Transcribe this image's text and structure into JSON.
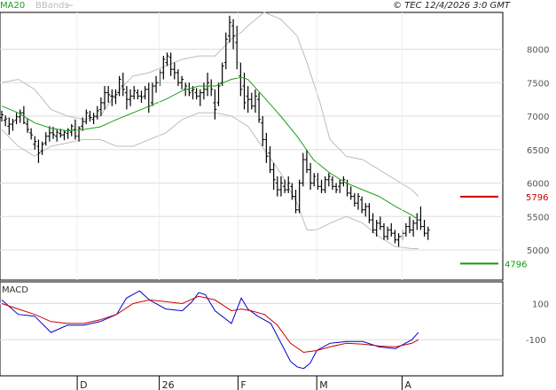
{
  "header": {
    "legend_ma": "MA20",
    "legend_bb": "BBands",
    "copyright": "© TEC 12/4/2026 3:0 GMT"
  },
  "colors": {
    "ma": "#1aa01a",
    "bbands": "#bdbdbd",
    "price": "#000000",
    "resistance": "#cc0000",
    "support": "#119911",
    "macd_line": "#0000cc",
    "signal_line": "#cc0000",
    "grid": "#dddddd"
  },
  "chart_data": [
    {
      "type": "line",
      "panel": "price",
      "ylim": [
        4550,
        8550
      ],
      "yticks": [
        5000,
        5500,
        6000,
        6500,
        7000,
        7500,
        8000
      ],
      "ytick_labels": [
        "5000",
        "5500",
        "6000",
        "6500",
        "7000",
        "7500",
        "8000"
      ],
      "x_labels": [
        {
          "label": "D",
          "x": 23
        },
        {
          "label": "26",
          "x": 48
        },
        {
          "label": "F",
          "x": 72
        },
        {
          "label": "M",
          "x": 96
        },
        {
          "label": "A",
          "x": 122
        }
      ],
      "x_range": [
        0,
        140
      ],
      "levels": [
        {
          "name": "resistance",
          "value": 5796,
          "label": "5796",
          "color": "#cc0000"
        },
        {
          "name": "support",
          "value": 4796,
          "label": "4796",
          "color": "#119911"
        }
      ],
      "series": [
        {
          "name": "MA20",
          "role": "ma",
          "x": [
            0,
            5,
            10,
            15,
            20,
            25,
            30,
            35,
            40,
            45,
            50,
            55,
            60,
            65,
            70,
            73,
            75,
            80,
            85,
            90,
            95,
            100,
            105,
            110,
            115,
            120,
            125,
            127
          ],
          "y": [
            7150,
            7050,
            6900,
            6820,
            6780,
            6800,
            6840,
            6950,
            7050,
            7150,
            7250,
            7380,
            7450,
            7450,
            7550,
            7580,
            7550,
            7280,
            7000,
            6700,
            6350,
            6150,
            6000,
            5900,
            5800,
            5650,
            5520,
            5450
          ]
        },
        {
          "name": "BB upper",
          "role": "bb_upper",
          "x": [
            0,
            5,
            10,
            15,
            20,
            25,
            30,
            35,
            40,
            45,
            50,
            55,
            60,
            65,
            68,
            71,
            73,
            75,
            80,
            85,
            90,
            93,
            97,
            100,
            105,
            110,
            115,
            120,
            125,
            127
          ],
          "y": [
            7500,
            7550,
            7400,
            7100,
            7000,
            6950,
            7000,
            7350,
            7600,
            7650,
            7750,
            7850,
            7900,
            7900,
            8050,
            8200,
            8250,
            8350,
            8550,
            8450,
            8200,
            7800,
            7200,
            6650,
            6400,
            6350,
            6200,
            6050,
            5900,
            5800
          ]
        },
        {
          "name": "BB lower",
          "role": "bb_lower",
          "x": [
            0,
            5,
            10,
            15,
            20,
            25,
            30,
            35,
            40,
            45,
            50,
            55,
            60,
            65,
            70,
            75,
            80,
            85,
            90,
            93,
            96,
            100,
            105,
            110,
            115,
            120,
            125,
            127
          ],
          "y": [
            6800,
            6550,
            6400,
            6550,
            6600,
            6650,
            6650,
            6550,
            6550,
            6650,
            6750,
            6950,
            7050,
            7050,
            7000,
            6850,
            6500,
            6150,
            5700,
            5300,
            5300,
            5400,
            5500,
            5400,
            5200,
            5050,
            5020,
            5020
          ]
        }
      ],
      "ohlc": [
        [
          6980,
          7080,
          6920,
          7020
        ],
        [
          6940,
          7010,
          6850,
          6960
        ],
        [
          6850,
          6980,
          6720,
          6880
        ],
        [
          6880,
          6960,
          6780,
          6920
        ],
        [
          6940,
          7050,
          6880,
          6990
        ],
        [
          6990,
          7100,
          6900,
          7050
        ],
        [
          7050,
          7150,
          6880,
          6900
        ],
        [
          6880,
          6960,
          6750,
          6800
        ],
        [
          6750,
          6820,
          6650,
          6720
        ],
        [
          6580,
          6700,
          6500,
          6620
        ],
        [
          6550,
          6650,
          6300,
          6450
        ],
        [
          6480,
          6620,
          6420,
          6580
        ],
        [
          6600,
          6760,
          6560,
          6700
        ],
        [
          6700,
          6850,
          6620,
          6750
        ],
        [
          6750,
          6840,
          6660,
          6720
        ],
        [
          6700,
          6800,
          6620,
          6760
        ],
        [
          6740,
          6810,
          6680,
          6720
        ],
        [
          6720,
          6790,
          6640,
          6760
        ],
        [
          6740,
          6820,
          6660,
          6790
        ],
        [
          6760,
          6880,
          6700,
          6850
        ],
        [
          6800,
          6950,
          6650,
          6700
        ],
        [
          6700,
          6850,
          6620,
          6820
        ],
        [
          6850,
          6980,
          6780,
          6920
        ],
        [
          6920,
          7100,
          6880,
          7050
        ],
        [
          7000,
          7080,
          6920,
          6980
        ],
        [
          6950,
          7050,
          6880,
          7000
        ],
        [
          7000,
          7150,
          6950,
          7080
        ],
        [
          7100,
          7280,
          7000,
          7200
        ],
        [
          7200,
          7450,
          7100,
          7350
        ],
        [
          7350,
          7450,
          7200,
          7320
        ],
        [
          7300,
          7400,
          7150,
          7300
        ],
        [
          7280,
          7400,
          7180,
          7320
        ],
        [
          7350,
          7600,
          7300,
          7550
        ],
        [
          7450,
          7650,
          7300,
          7400
        ],
        [
          7350,
          7450,
          7100,
          7250
        ],
        [
          7250,
          7400,
          7150,
          7300
        ],
        [
          7300,
          7450,
          7250,
          7380
        ],
        [
          7350,
          7400,
          7250,
          7300
        ],
        [
          7300,
          7380,
          7200,
          7280
        ],
        [
          7300,
          7450,
          7250,
          7400
        ],
        [
          7400,
          7500,
          7050,
          7150
        ],
        [
          7200,
          7500,
          7150,
          7450
        ],
        [
          7450,
          7600,
          7350,
          7500
        ],
        [
          7500,
          7700,
          7450,
          7650
        ],
        [
          7650,
          7900,
          7550,
          7850
        ],
        [
          7800,
          7950,
          7750,
          7900
        ],
        [
          7880,
          7950,
          7600,
          7700
        ],
        [
          7700,
          7800,
          7550,
          7650
        ],
        [
          7650,
          7700,
          7450,
          7500
        ],
        [
          7500,
          7600,
          7400,
          7550
        ],
        [
          7400,
          7500,
          7300,
          7450
        ],
        [
          7400,
          7500,
          7300,
          7350
        ],
        [
          7380,
          7450,
          7250,
          7400
        ],
        [
          7350,
          7420,
          7250,
          7300
        ],
        [
          7300,
          7400,
          7150,
          7350
        ],
        [
          7350,
          7500,
          7250,
          7400
        ],
        [
          7400,
          7650,
          7300,
          7500
        ],
        [
          7450,
          7550,
          7300,
          7400
        ],
        [
          7200,
          7400,
          6950,
          7100
        ],
        [
          7200,
          7500,
          7150,
          7450
        ],
        [
          7500,
          7800,
          7450,
          7750
        ],
        [
          7800,
          8250,
          7700,
          8150
        ],
        [
          8200,
          8500,
          8100,
          8400
        ],
        [
          8350,
          8450,
          8000,
          8200
        ],
        [
          8100,
          8350,
          7700,
          7800
        ],
        [
          7600,
          7800,
          7300,
          7400
        ],
        [
          7450,
          7650,
          7100,
          7200
        ],
        [
          7300,
          7450,
          7050,
          7250
        ],
        [
          7250,
          7350,
          7100,
          7150
        ],
        [
          7150,
          7400,
          7050,
          7300
        ],
        [
          7250,
          7350,
          6900,
          6950
        ],
        [
          6900,
          7000,
          6550,
          6650
        ],
        [
          6650,
          6750,
          6300,
          6400
        ],
        [
          6450,
          6550,
          6150,
          6200
        ],
        [
          6200,
          6300,
          5900,
          6050
        ],
        [
          6000,
          6100,
          5800,
          5900
        ],
        [
          5900,
          6100,
          5800,
          6000
        ],
        [
          5950,
          6050,
          5850,
          5900
        ],
        [
          5900,
          6100,
          5850,
          6000
        ],
        [
          5950,
          6000,
          5750,
          5800
        ],
        [
          5800,
          5900,
          5550,
          5600
        ],
        [
          5600,
          6050,
          5550,
          6000
        ],
        [
          6000,
          6450,
          5950,
          6350
        ],
        [
          6350,
          6500,
          6150,
          6200
        ],
        [
          6200,
          6300,
          5900,
          6000
        ],
        [
          6000,
          6150,
          5950,
          6100
        ],
        [
          6050,
          6150,
          5900,
          5950
        ],
        [
          5950,
          6050,
          5850,
          5900
        ],
        [
          5900,
          6100,
          5850,
          6050
        ],
        [
          6050,
          6150,
          5950,
          6100
        ],
        [
          6050,
          6100,
          5900,
          5950
        ],
        [
          5950,
          6000,
          5850,
          5900
        ],
        [
          5950,
          6050,
          5850,
          6000
        ],
        [
          6000,
          6100,
          5950,
          6050
        ],
        [
          6000,
          6050,
          5800,
          5850
        ],
        [
          5850,
          5950,
          5750,
          5800
        ],
        [
          5800,
          5850,
          5650,
          5700
        ],
        [
          5700,
          5850,
          5600,
          5800
        ],
        [
          5750,
          5800,
          5550,
          5600
        ],
        [
          5600,
          5700,
          5500,
          5650
        ],
        [
          5650,
          5700,
          5400,
          5450
        ],
        [
          5450,
          5550,
          5250,
          5300
        ],
        [
          5300,
          5450,
          5200,
          5400
        ],
        [
          5400,
          5500,
          5300,
          5350
        ],
        [
          5350,
          5400,
          5150,
          5200
        ],
        [
          5200,
          5350,
          5150,
          5300
        ],
        [
          5300,
          5400,
          5200,
          5250
        ],
        [
          5250,
          5300,
          5100,
          5150
        ],
        [
          5150,
          5250,
          5050,
          5200
        ],
        [
          5200,
          5300,
          5150,
          5250
        ],
        [
          5250,
          5400,
          5200,
          5350
        ],
        [
          5350,
          5500,
          5250,
          5300
        ],
        [
          5300,
          5450,
          5200,
          5400
        ],
        [
          5400,
          5550,
          5300,
          5450
        ],
        [
          5450,
          5650,
          5300,
          5350
        ],
        [
          5350,
          5450,
          5200,
          5250
        ],
        [
          5250,
          5350,
          5150,
          5300
        ]
      ],
      "ohlc_x_start": 0,
      "ohlc_x_step": 1.12
    },
    {
      "type": "line",
      "panel": "macd",
      "title": "MACD",
      "ylim": [
        -300,
        220
      ],
      "yticks": [
        100,
        -100
      ],
      "ytick_labels": [
        "100",
        "-100"
      ],
      "x_range": [
        0,
        140
      ],
      "series": [
        {
          "name": "MACD",
          "role": "macd_line",
          "x": [
            0,
            5,
            10,
            15,
            20,
            25,
            30,
            35,
            38,
            42,
            45,
            50,
            55,
            58,
            60,
            62,
            65,
            70,
            73,
            75,
            78,
            82,
            86,
            88,
            90,
            92,
            94,
            96,
            100,
            105,
            110,
            115,
            120,
            125,
            127
          ],
          "y": [
            120,
            40,
            30,
            -60,
            -20,
            -20,
            0,
            40,
            130,
            170,
            120,
            70,
            60,
            110,
            160,
            150,
            60,
            -10,
            130,
            70,
            30,
            -10,
            -150,
            -220,
            -250,
            -260,
            -230,
            -160,
            -120,
            -110,
            -110,
            -140,
            -150,
            -100,
            -60
          ]
        },
        {
          "name": "Signal",
          "role": "signal_line",
          "x": [
            0,
            5,
            10,
            15,
            20,
            25,
            30,
            35,
            40,
            45,
            50,
            55,
            60,
            65,
            70,
            73,
            76,
            80,
            84,
            88,
            92,
            96,
            100,
            105,
            110,
            115,
            120,
            125,
            127
          ],
          "y": [
            100,
            70,
            40,
            0,
            -10,
            -10,
            10,
            40,
            100,
            120,
            110,
            100,
            140,
            120,
            60,
            70,
            60,
            40,
            -20,
            -120,
            -170,
            -160,
            -140,
            -120,
            -125,
            -135,
            -140,
            -120,
            -100
          ]
        }
      ]
    }
  ]
}
